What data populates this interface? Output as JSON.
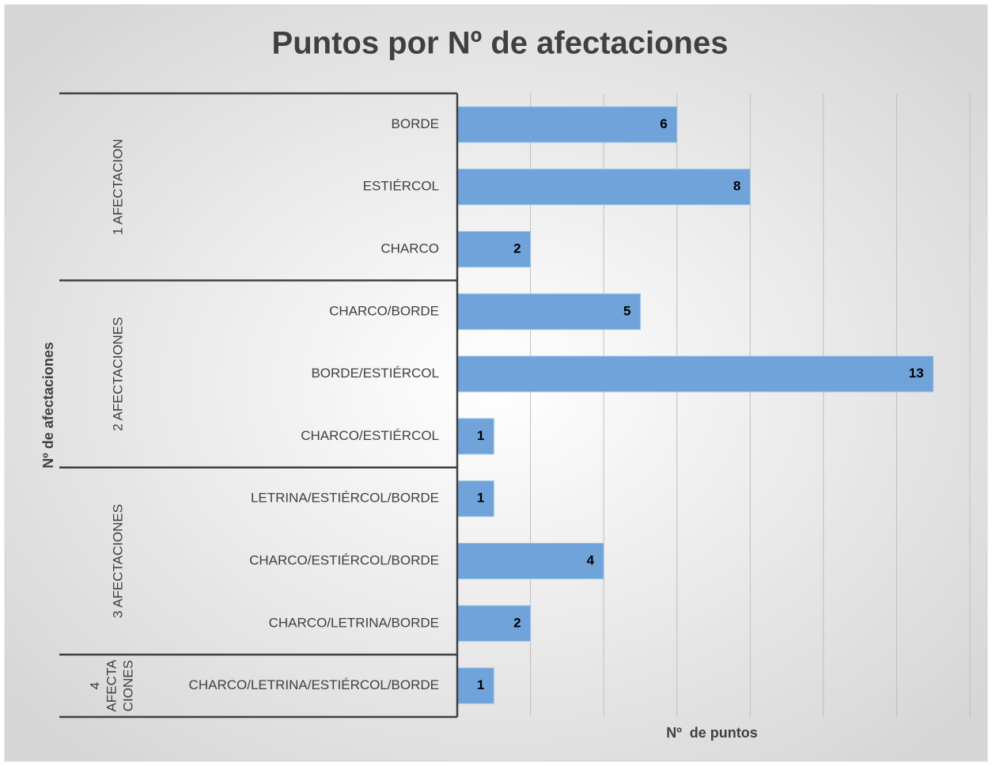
{
  "chart_data": {
    "type": "bar",
    "orientation": "horizontal",
    "title": "Puntos por Nº de afectaciones",
    "x_label": "Nº  de puntos",
    "y_label": "Nº de afectaciones",
    "color": "#6fa3d9",
    "xlim": [
      0,
      14
    ],
    "xticks": [
      0,
      2,
      4,
      6,
      8,
      10,
      12,
      14
    ],
    "grid": true,
    "groups": [
      {
        "label": "1 AFECTACION",
        "categories": [
          "BORDE",
          "ESTIÉRCOL",
          "CHARCO"
        ],
        "values": [
          6,
          8,
          2
        ]
      },
      {
        "label": "2 AFECTACIONES",
        "categories": [
          "CHARCO/BORDE",
          "BORDE/ESTIÉRCOL",
          "CHARCO/ESTIÉRCOL"
        ],
        "values": [
          5,
          13,
          1
        ]
      },
      {
        "label": "3 AFECTACIONES",
        "categories": [
          "LETRINA/ESTIÉRCOL/BORDE",
          "CHARCO/ESTIÉRCOL/BORDE",
          "CHARCO/LETRINA/BORDE"
        ],
        "values": [
          1,
          4,
          2
        ]
      },
      {
        "label": [
          "4",
          "AFECTA",
          "CIONES"
        ],
        "categories": [
          "CHARCO/LETRINA/ESTIÉRCOL/BORDE"
        ],
        "values": [
          1
        ]
      }
    ]
  }
}
